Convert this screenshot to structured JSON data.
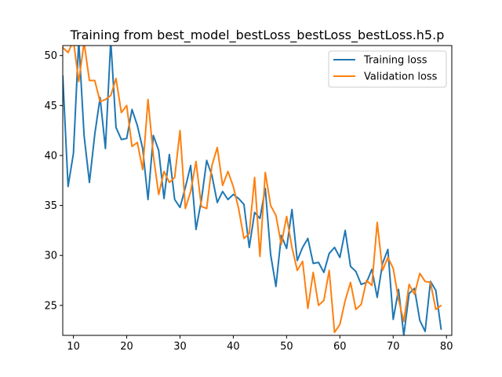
{
  "chart_data": {
    "type": "line",
    "title": "Training from best_model_bestLoss_bestLoss_bestLoss.h5.p",
    "xlabel": "",
    "ylabel": "",
    "xlim": [
      8,
      81
    ],
    "ylim": [
      22,
      51
    ],
    "grid": false,
    "legend_position": "top-right",
    "x_ticks": [
      10,
      20,
      30,
      40,
      50,
      60,
      70,
      80
    ],
    "y_ticks": [
      25,
      30,
      35,
      40,
      45,
      50
    ],
    "x": [
      8,
      9,
      10,
      11,
      12,
      13,
      14,
      15,
      16,
      17,
      18,
      19,
      20,
      21,
      22,
      23,
      24,
      25,
      26,
      27,
      28,
      29,
      30,
      31,
      32,
      33,
      34,
      35,
      36,
      37,
      38,
      39,
      40,
      41,
      42,
      43,
      44,
      45,
      46,
      47,
      48,
      49,
      50,
      51,
      52,
      53,
      54,
      55,
      56,
      57,
      58,
      59,
      60,
      61,
      62,
      63,
      64,
      65,
      66,
      67,
      68,
      69,
      70,
      71,
      72,
      73,
      74,
      75,
      76,
      77,
      78,
      79
    ],
    "series": [
      {
        "name": "Training loss",
        "color": "#1f77b4",
        "values": [
          48.0,
          36.9,
          40.2,
          51.5,
          42.0,
          37.3,
          42.1,
          45.8,
          40.7,
          51.5,
          42.8,
          41.6,
          41.7,
          44.6,
          43.0,
          40.7,
          35.6,
          42.0,
          40.5,
          35.7,
          40.1,
          35.6,
          34.8,
          36.8,
          39.0,
          32.6,
          35.5,
          39.5,
          38.0,
          35.3,
          36.4,
          35.6,
          36.1,
          35.7,
          35.1,
          30.8,
          34.3,
          33.7,
          36.7,
          30.1,
          26.9,
          32.0,
          30.7,
          34.6,
          29.5,
          30.8,
          31.7,
          29.2,
          29.3,
          28.3,
          30.2,
          30.8,
          29.8,
          32.5,
          28.9,
          28.4,
          27.1,
          27.3,
          28.6,
          25.8,
          29.2,
          30.6,
          23.6,
          26.6,
          22.0,
          26.2,
          26.7,
          23.5,
          22.4,
          27.4,
          26.5,
          22.6
        ]
      },
      {
        "name": "Validation loss",
        "color": "#ff7f0e",
        "values": [
          50.8,
          50.3,
          51.5,
          47.4,
          51.3,
          47.5,
          47.5,
          45.4,
          45.6,
          46.0,
          47.7,
          44.3,
          45.0,
          40.9,
          41.3,
          38.6,
          45.6,
          40.0,
          36.1,
          38.4,
          37.3,
          37.8,
          42.5,
          34.7,
          36.4,
          39.4,
          34.9,
          34.7,
          39.0,
          40.8,
          37.0,
          38.4,
          36.9,
          34.7,
          31.7,
          32.2,
          37.8,
          29.9,
          38.3,
          35.0,
          34.0,
          31.1,
          33.9,
          30.8,
          28.5,
          29.4,
          24.7,
          28.3,
          25.0,
          25.5,
          28.5,
          22.3,
          23.1,
          25.5,
          27.3,
          24.6,
          25.1,
          27.5,
          27.0,
          33.3,
          28.5,
          29.8,
          28.7,
          25.6,
          23.4,
          27.1,
          26.1,
          28.2,
          27.4,
          27.3,
          24.6,
          25.0
        ]
      }
    ]
  }
}
